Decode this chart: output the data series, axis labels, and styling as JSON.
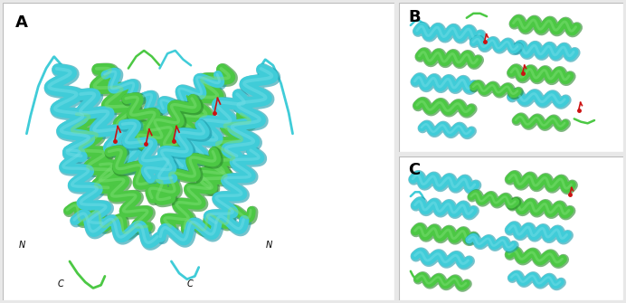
{
  "bg_color": "#e8e8e8",
  "panel_bg": "#ffffff",
  "border_color": "#bbbbbb",
  "label_A": "A",
  "label_B": "B",
  "label_C": "C",
  "cyan_color": "#40ccd8",
  "cyan_light": "#70dde6",
  "cyan_dark": "#1a9aaa",
  "green_color": "#4cc844",
  "green_light": "#7ade72",
  "green_dark": "#28882a",
  "red_color": "#cc1111",
  "label_fontsize": 13,
  "annot_fontsize": 7,
  "fig_width": 6.92,
  "fig_height": 3.35,
  "dpi": 100
}
